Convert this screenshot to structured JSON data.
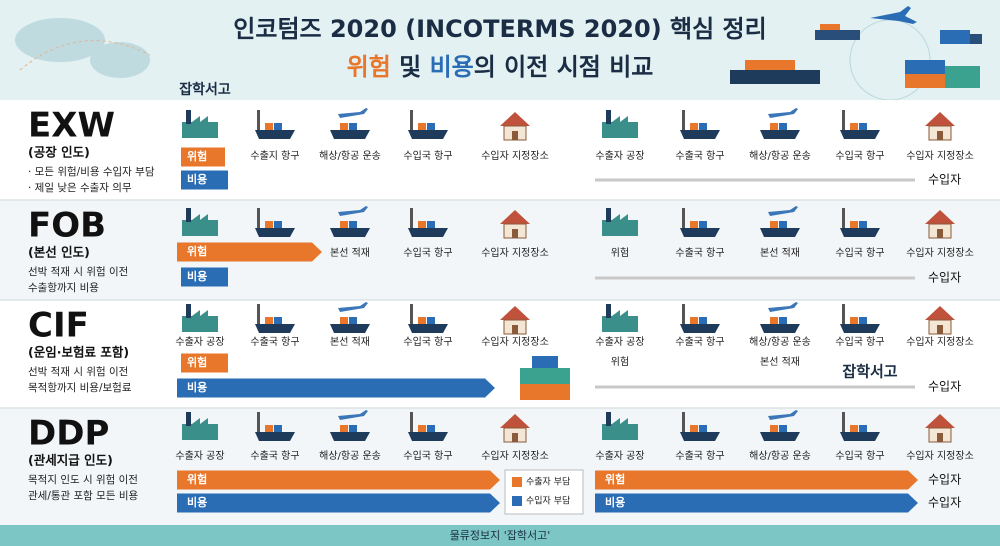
{
  "header": {
    "title": "인코텀즈 2020 (INCOTERMS 2020) 핵심 정리",
    "subtitle": {
      "risk": "위험",
      "and": " 및 ",
      "cost": "비용",
      "rest": "의 이전 시점 비교"
    }
  },
  "logo": "잡학서고",
  "logo_2": "잡학서고",
  "rows": [
    {
      "code": "EXW",
      "sub": "(공장 인도)",
      "notes": [
        "· 모든 위험/비용 수입자 부담",
        "· 제일 낮은 수출자 의무"
      ],
      "left_labels": [
        "수출지 항구",
        "해상/항공 운송",
        "수입국 항구",
        "수입자 지정장소"
      ],
      "risk": "위험",
      "cost": "비용",
      "right_labels": [
        "수출자 공장",
        "수출국 항구",
        "해상/항공 운송",
        "수입국 항구",
        "수입자 지정장소"
      ],
      "end": [
        "수입자"
      ]
    },
    {
      "code": "FOB",
      "sub": "(본선 인도)",
      "notes": [
        "선박 적재 시 위험 이전",
        "수출항까지 비용"
      ],
      "left_labels": [
        "본선 적재",
        "수입국 항구",
        "수입자 지정장소"
      ],
      "risk": "위험",
      "cost": "비용",
      "right_labels": [
        "위험",
        "수출국 항구",
        "본선 적재",
        "수입국 항구",
        "수입자 지정장소"
      ],
      "end": [
        "수입자"
      ]
    },
    {
      "code": "CIF",
      "sub": "(운임·보험료 포함)",
      "notes": [
        "선박 적재 시 위험 이전",
        "목적항까지 비용/보험료"
      ],
      "left_labels": [
        "수출자 공장",
        "수출국 항구",
        "본선 적재",
        "수입국 항구",
        "수입자 지정장소"
      ],
      "risk": "위험",
      "cost": "비용",
      "right_labels": [
        "수출자 공장",
        "수출국 항구",
        "해상/항공 운송",
        "수입국 항구",
        "수입자 지정장소"
      ],
      "right_extra": [
        "위험",
        "본선 적재"
      ],
      "end": [
        "수입자"
      ]
    },
    {
      "code": "DDP",
      "sub": "(관세지급 인도)",
      "notes": [
        "목적지 인도 시 위험 이전",
        "관세/통관 포함 모든 비용"
      ],
      "left_labels": [
        "수출자 공장",
        "수출국 항구",
        "해상/항공 운송",
        "수입국 항구",
        "수입자 지정장소"
      ],
      "risk": "위험",
      "cost": "비용",
      "right_labels": [
        "수출자 공장",
        "수출국 항구",
        "해상/항공 운송",
        "수입국 항구",
        "수입자 지정장소"
      ],
      "right_bars": [
        "위험",
        "비용"
      ],
      "end": [
        "수입자",
        "수입자"
      ]
    }
  ],
  "legend": {
    "exporter": "수출자 부담",
    "importer": "수입자 부담"
  },
  "footer": "물류정보지 '잡학서고'"
}
